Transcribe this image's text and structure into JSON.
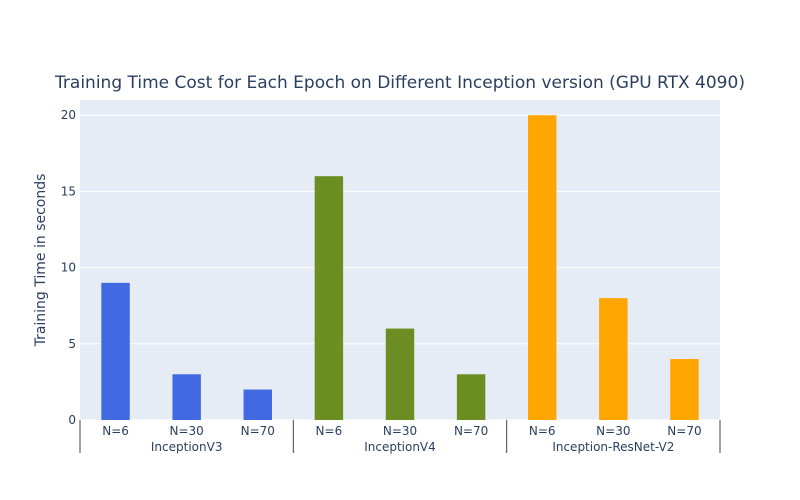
{
  "chart_data": {
    "type": "bar",
    "title": "Training Time Cost for Each Epoch on Different Inception version (GPU RTX 4090)",
    "xlabel": "",
    "ylabel": "Training Time in seconds",
    "ylim": [
      0,
      21
    ],
    "yticks": [
      0,
      5,
      10,
      15,
      20
    ],
    "grid": true,
    "groups": [
      {
        "name": "InceptionV3",
        "color": "#4169e1",
        "categories": [
          "N=6",
          "N=30",
          "N=70"
        ],
        "values": [
          9,
          3,
          2
        ]
      },
      {
        "name": "InceptionV4",
        "color": "#6b8e23",
        "categories": [
          "N=6",
          "N=30",
          "N=70"
        ],
        "values": [
          16,
          6,
          3
        ]
      },
      {
        "name": "Inception-ResNet-V2",
        "color": "#ffa500",
        "categories": [
          "N=6",
          "N=30",
          "N=70"
        ],
        "values": [
          20,
          8,
          4
        ]
      }
    ]
  },
  "colors": {
    "plot_bg": "#e5ecf6",
    "grid": "#ffffff",
    "text": "#2a3f5f"
  }
}
